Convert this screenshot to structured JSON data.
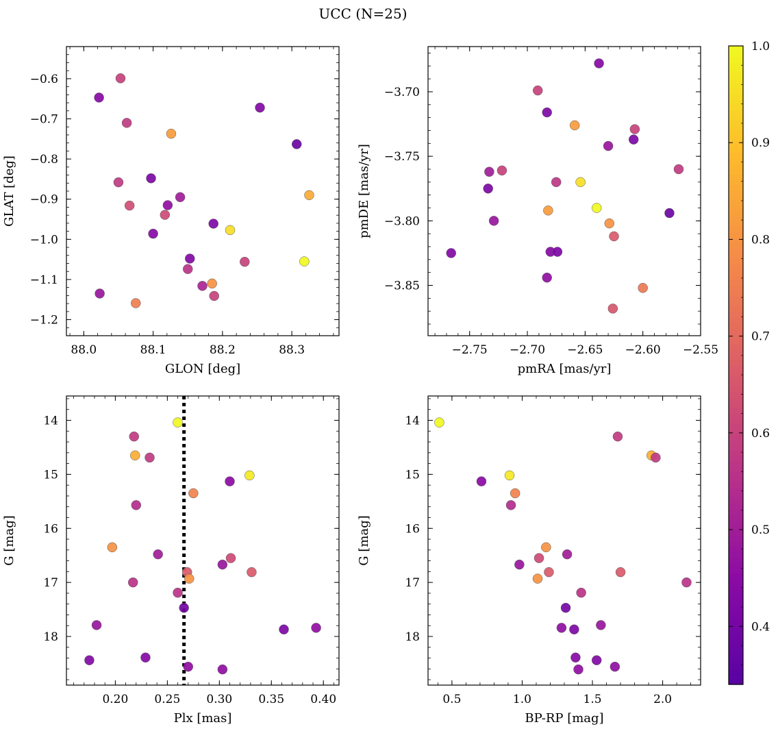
{
  "figure": {
    "title": "UCC (N=25)"
  },
  "colorbar": {
    "colormap": "plasma",
    "vmin": 0.34,
    "vmax": 1.0,
    "ticks": [
      0.4,
      0.5,
      0.6,
      0.7,
      0.8,
      0.9,
      1.0
    ],
    "tick_labels": [
      "0.4",
      "0.5",
      "0.6",
      "0.7",
      "0.8",
      "0.9",
      "1.0"
    ]
  },
  "chart_data": [
    {
      "type": "scatter",
      "title": "",
      "xlabel": "GLON [deg]",
      "ylabel": "GLAT [deg]",
      "xlim": [
        87.975,
        88.368
      ],
      "ylim": [
        -1.24,
        -0.52
      ],
      "y_inverted": false,
      "xticks": [
        88.0,
        88.1,
        88.2,
        88.3
      ],
      "xtick_labels": [
        "88.0",
        "88.1",
        "88.2",
        "88.3"
      ],
      "yticks": [
        -1.2,
        -1.1,
        -1.0,
        -0.9,
        -0.8,
        -0.7,
        -0.6
      ],
      "ytick_labels": [
        "−1.2",
        "−1.1",
        "−1.0",
        "−0.9",
        "−0.8",
        "−0.7",
        "−0.6"
      ],
      "vlines": [],
      "points": [
        {
          "x": 88.053,
          "y": -0.599,
          "c": 0.6
        },
        {
          "x": 88.022,
          "y": -0.647,
          "c": 0.44
        },
        {
          "x": 88.062,
          "y": -0.71,
          "c": 0.58
        },
        {
          "x": 88.126,
          "y": -0.737,
          "c": 0.82
        },
        {
          "x": 88.254,
          "y": -0.672,
          "c": 0.43
        },
        {
          "x": 88.307,
          "y": -0.763,
          "c": 0.38
        },
        {
          "x": 88.097,
          "y": -0.848,
          "c": 0.42
        },
        {
          "x": 88.05,
          "y": -0.858,
          "c": 0.58
        },
        {
          "x": 88.139,
          "y": -0.895,
          "c": 0.5
        },
        {
          "x": 88.121,
          "y": -0.915,
          "c": 0.46
        },
        {
          "x": 88.066,
          "y": -0.916,
          "c": 0.63
        },
        {
          "x": 88.117,
          "y": -0.939,
          "c": 0.62
        },
        {
          "x": 88.325,
          "y": -0.89,
          "c": 0.85
        },
        {
          "x": 88.187,
          "y": -0.961,
          "c": 0.42
        },
        {
          "x": 88.211,
          "y": -0.977,
          "c": 0.95
        },
        {
          "x": 88.1,
          "y": -0.986,
          "c": 0.44
        },
        {
          "x": 88.153,
          "y": -1.048,
          "c": 0.43
        },
        {
          "x": 88.232,
          "y": -1.056,
          "c": 0.6
        },
        {
          "x": 88.318,
          "y": -1.055,
          "c": 1.0
        },
        {
          "x": 88.15,
          "y": -1.074,
          "c": 0.56
        },
        {
          "x": 88.171,
          "y": -1.116,
          "c": 0.52
        },
        {
          "x": 88.185,
          "y": -1.11,
          "c": 0.8
        },
        {
          "x": 88.188,
          "y": -1.141,
          "c": 0.6
        },
        {
          "x": 88.023,
          "y": -1.135,
          "c": 0.48
        },
        {
          "x": 88.075,
          "y": -1.159,
          "c": 0.75
        }
      ]
    },
    {
      "type": "scatter",
      "title": "",
      "xlabel": "pmRA [mas/yr]",
      "ylabel": "pmDE [mas/yr]",
      "xlim": [
        -2.786,
        -2.55
      ],
      "ylim": [
        -3.889,
        -3.665
      ],
      "y_inverted": false,
      "xticks": [
        -2.75,
        -2.7,
        -2.65,
        -2.6,
        -2.55
      ],
      "xtick_labels": [
        "−2.75",
        "−2.70",
        "−2.65",
        "−2.60",
        "−2.55"
      ],
      "yticks": [
        -3.85,
        -3.8,
        -3.75,
        -3.7
      ],
      "ytick_labels": [
        "−3.85",
        "−3.80",
        "−3.75",
        "−3.70"
      ],
      "vlines": [],
      "points": [
        {
          "x": -2.638,
          "y": -3.678,
          "c": 0.44
        },
        {
          "x": -2.691,
          "y": -3.699,
          "c": 0.6
        },
        {
          "x": -2.683,
          "y": -3.716,
          "c": 0.42
        },
        {
          "x": -2.659,
          "y": -3.726,
          "c": 0.82
        },
        {
          "x": -2.607,
          "y": -3.729,
          "c": 0.6
        },
        {
          "x": -2.608,
          "y": -3.737,
          "c": 0.42
        },
        {
          "x": -2.63,
          "y": -3.742,
          "c": 0.48
        },
        {
          "x": -2.733,
          "y": -3.762,
          "c": 0.5
        },
        {
          "x": -2.722,
          "y": -3.761,
          "c": 0.6
        },
        {
          "x": -2.569,
          "y": -3.76,
          "c": 0.58
        },
        {
          "x": -2.675,
          "y": -3.77,
          "c": 0.57
        },
        {
          "x": -2.654,
          "y": -3.77,
          "c": 0.95
        },
        {
          "x": -2.734,
          "y": -3.775,
          "c": 0.42
        },
        {
          "x": -2.682,
          "y": -3.792,
          "c": 0.82
        },
        {
          "x": -2.64,
          "y": -3.79,
          "c": 1.0
        },
        {
          "x": -2.577,
          "y": -3.794,
          "c": 0.38
        },
        {
          "x": -2.729,
          "y": -3.8,
          "c": 0.48
        },
        {
          "x": -2.629,
          "y": -3.802,
          "c": 0.8
        },
        {
          "x": -2.625,
          "y": -3.812,
          "c": 0.66
        },
        {
          "x": -2.766,
          "y": -3.825,
          "c": 0.43
        },
        {
          "x": -2.68,
          "y": -3.824,
          "c": 0.44
        },
        {
          "x": -2.674,
          "y": -3.824,
          "c": 0.42
        },
        {
          "x": -2.683,
          "y": -3.844,
          "c": 0.46
        },
        {
          "x": -2.6,
          "y": -3.852,
          "c": 0.74
        },
        {
          "x": -2.626,
          "y": -3.868,
          "c": 0.65
        }
      ]
    },
    {
      "type": "scatter",
      "title": "",
      "xlabel": "Plx [mas]",
      "ylabel": "G [mag]",
      "xlim": [
        0.153,
        0.415
      ],
      "ylim": [
        13.55,
        18.9
      ],
      "y_inverted": true,
      "xticks": [
        0.2,
        0.25,
        0.3,
        0.35,
        0.4
      ],
      "xtick_labels": [
        "0.20",
        "0.25",
        "0.30",
        "0.35",
        "0.40"
      ],
      "yticks": [
        14,
        15,
        16,
        17,
        18
      ],
      "ytick_labels": [
        "14",
        "15",
        "16",
        "17",
        "18"
      ],
      "vlines": [
        {
          "x": 0.266,
          "style": "dotted"
        }
      ],
      "points": [
        {
          "x": 0.26,
          "y": 14.04,
          "c": 1.0
        },
        {
          "x": 0.218,
          "y": 14.3,
          "c": 0.58
        },
        {
          "x": 0.219,
          "y": 14.65,
          "c": 0.86
        },
        {
          "x": 0.233,
          "y": 14.69,
          "c": 0.58
        },
        {
          "x": 0.329,
          "y": 15.02,
          "c": 0.97
        },
        {
          "x": 0.31,
          "y": 15.13,
          "c": 0.45
        },
        {
          "x": 0.275,
          "y": 15.35,
          "c": 0.76
        },
        {
          "x": 0.22,
          "y": 15.57,
          "c": 0.54
        },
        {
          "x": 0.197,
          "y": 16.35,
          "c": 0.8
        },
        {
          "x": 0.241,
          "y": 16.48,
          "c": 0.5
        },
        {
          "x": 0.311,
          "y": 16.55,
          "c": 0.62
        },
        {
          "x": 0.303,
          "y": 16.67,
          "c": 0.48
        },
        {
          "x": 0.269,
          "y": 16.81,
          "c": 0.66
        },
        {
          "x": 0.331,
          "y": 16.81,
          "c": 0.66
        },
        {
          "x": 0.271,
          "y": 16.93,
          "c": 0.8
        },
        {
          "x": 0.217,
          "y": 17.0,
          "c": 0.56
        },
        {
          "x": 0.26,
          "y": 17.19,
          "c": 0.56
        },
        {
          "x": 0.266,
          "y": 17.47,
          "c": 0.4
        },
        {
          "x": 0.182,
          "y": 17.79,
          "c": 0.48
        },
        {
          "x": 0.362,
          "y": 17.87,
          "c": 0.42
        },
        {
          "x": 0.393,
          "y": 17.84,
          "c": 0.46
        },
        {
          "x": 0.175,
          "y": 18.44,
          "c": 0.43
        },
        {
          "x": 0.229,
          "y": 18.39,
          "c": 0.44
        },
        {
          "x": 0.27,
          "y": 18.56,
          "c": 0.46
        },
        {
          "x": 0.303,
          "y": 18.61,
          "c": 0.46
        }
      ]
    },
    {
      "type": "scatter",
      "title": "",
      "xlabel": "BP-RP [mag]",
      "ylabel": "G [mag]",
      "xlim": [
        0.33,
        2.27
      ],
      "ylim": [
        13.55,
        18.9
      ],
      "y_inverted": true,
      "xticks": [
        0.5,
        1.0,
        1.5,
        2.0
      ],
      "xtick_labels": [
        "0.5",
        "1.0",
        "1.5",
        "2.0"
      ],
      "yticks": [
        14,
        15,
        16,
        17,
        18
      ],
      "ytick_labels": [
        "14",
        "15",
        "16",
        "17",
        "18"
      ],
      "vlines": [],
      "points": [
        {
          "x": 0.41,
          "y": 14.04,
          "c": 1.0
        },
        {
          "x": 1.68,
          "y": 14.3,
          "c": 0.58
        },
        {
          "x": 1.92,
          "y": 14.65,
          "c": 0.86
        },
        {
          "x": 1.95,
          "y": 14.69,
          "c": 0.58
        },
        {
          "x": 0.91,
          "y": 15.02,
          "c": 0.97
        },
        {
          "x": 0.71,
          "y": 15.13,
          "c": 0.45
        },
        {
          "x": 0.95,
          "y": 15.35,
          "c": 0.76
        },
        {
          "x": 0.92,
          "y": 15.57,
          "c": 0.54
        },
        {
          "x": 1.17,
          "y": 16.35,
          "c": 0.8
        },
        {
          "x": 1.32,
          "y": 16.48,
          "c": 0.5
        },
        {
          "x": 1.12,
          "y": 16.55,
          "c": 0.62
        },
        {
          "x": 0.98,
          "y": 16.67,
          "c": 0.48
        },
        {
          "x": 1.19,
          "y": 16.81,
          "c": 0.66
        },
        {
          "x": 1.7,
          "y": 16.81,
          "c": 0.66
        },
        {
          "x": 1.11,
          "y": 16.93,
          "c": 0.8
        },
        {
          "x": 2.17,
          "y": 17.0,
          "c": 0.56
        },
        {
          "x": 1.42,
          "y": 17.19,
          "c": 0.56
        },
        {
          "x": 1.31,
          "y": 17.47,
          "c": 0.4
        },
        {
          "x": 1.56,
          "y": 17.79,
          "c": 0.48
        },
        {
          "x": 1.37,
          "y": 17.87,
          "c": 0.42
        },
        {
          "x": 1.28,
          "y": 17.84,
          "c": 0.46
        },
        {
          "x": 1.53,
          "y": 18.44,
          "c": 0.43
        },
        {
          "x": 1.38,
          "y": 18.39,
          "c": 0.44
        },
        {
          "x": 1.66,
          "y": 18.56,
          "c": 0.46
        },
        {
          "x": 1.4,
          "y": 18.61,
          "c": 0.46
        }
      ]
    }
  ]
}
